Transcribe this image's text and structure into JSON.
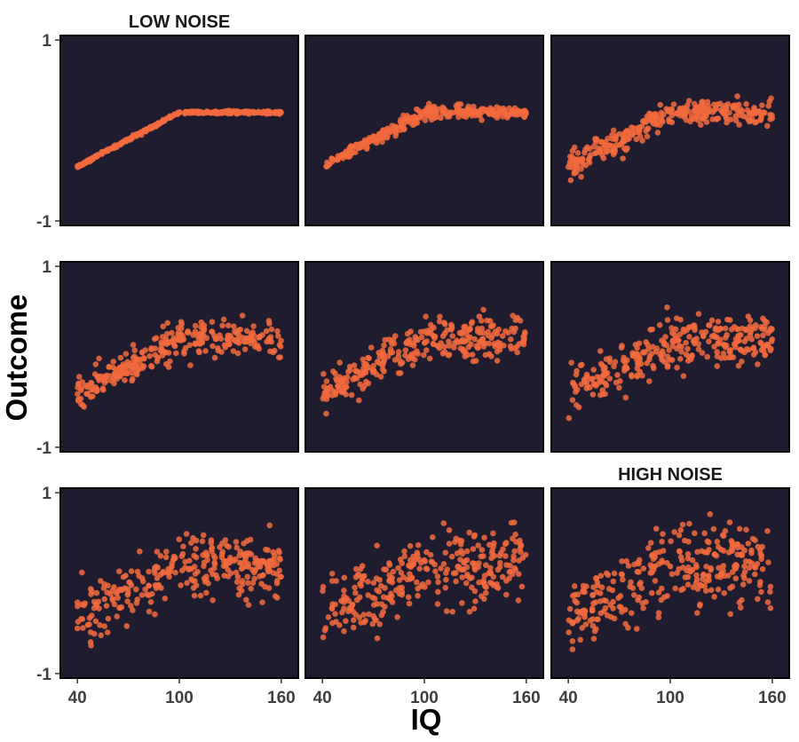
{
  "colors": {
    "panel_bg": "#1e1c2e",
    "point": "#f26a3d",
    "frame": "#000000",
    "tick_text": "#3f3f3f"
  },
  "chart_data": {
    "type": "scatter",
    "layout": "3x3 small multiples, noise increasing left-to-right then top-to-bottom",
    "xlabel": "IQ",
    "ylabel": "Outcome",
    "xlim": [
      30,
      170
    ],
    "ylim": [
      -1.05,
      1.05
    ],
    "xticks": [
      40,
      100,
      160
    ],
    "xtick_labels": [
      "40",
      "100",
      "160"
    ],
    "yticks": [
      1,
      -1
    ],
    "ytick_labels": [
      "1",
      "-1"
    ],
    "points_per_panel": 300,
    "underlying_function": "y = 0.01*x - 0.8 for x < 100; y = 0.2 for x >= 100",
    "x_range_of_data": [
      40,
      160
    ],
    "panels": [
      {
        "row": 1,
        "col": 1,
        "noise_sd": 0.008,
        "title": "LOW NOISE"
      },
      {
        "row": 1,
        "col": 2,
        "noise_sd": 0.035,
        "title": ""
      },
      {
        "row": 1,
        "col": 3,
        "noise_sd": 0.07,
        "title": ""
      },
      {
        "row": 2,
        "col": 1,
        "noise_sd": 0.09,
        "title": ""
      },
      {
        "row": 2,
        "col": 2,
        "noise_sd": 0.11,
        "title": ""
      },
      {
        "row": 2,
        "col": 3,
        "noise_sd": 0.14,
        "title": ""
      },
      {
        "row": 3,
        "col": 1,
        "noise_sd": 0.16,
        "title": ""
      },
      {
        "row": 3,
        "col": 2,
        "noise_sd": 0.19,
        "title": ""
      },
      {
        "row": 3,
        "col": 3,
        "noise_sd": 0.22,
        "title": "HIGH NOISE"
      }
    ]
  }
}
